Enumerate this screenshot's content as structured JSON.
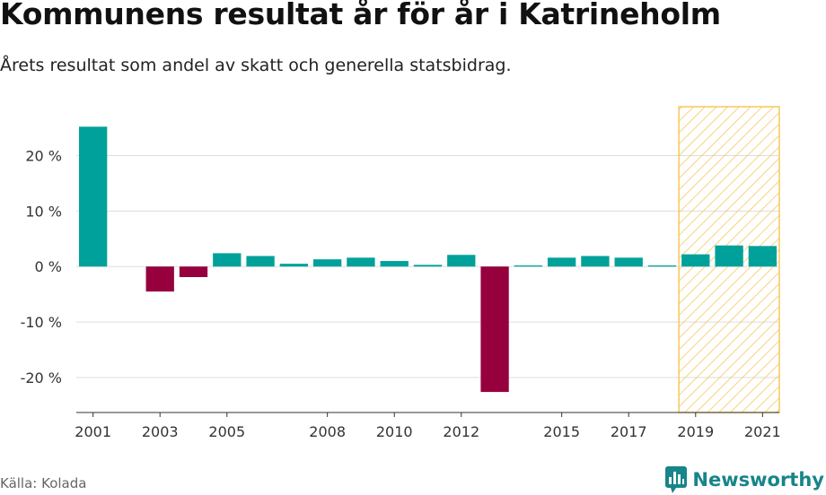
{
  "header": {
    "title": "Kommunens resultat år för år i Katrineholm",
    "subtitle": "Årets resultat som andel av skatt och generella statsbidrag."
  },
  "footer": {
    "source": "Källa: Kolada",
    "brand": "Newsworthy"
  },
  "colors": {
    "positive": "#00a19a",
    "negative": "#96003c",
    "highlight": "#f7c85a",
    "grid": "#dddddd",
    "brand": "#17858a"
  },
  "chart_data": {
    "type": "bar",
    "x": [
      2001,
      2002,
      2003,
      2004,
      2005,
      2006,
      2007,
      2008,
      2009,
      2010,
      2011,
      2012,
      2013,
      2014,
      2015,
      2016,
      2017,
      2018,
      2019,
      2020,
      2021
    ],
    "values": [
      25.2,
      0,
      -4.5,
      -1.9,
      2.4,
      1.9,
      0.5,
      1.3,
      1.6,
      1.0,
      0.3,
      2.1,
      -22.6,
      0.2,
      1.6,
      1.9,
      1.6,
      0.2,
      2.2,
      3.8,
      3.7
    ],
    "x_tick_labels": [
      "2001",
      "2003",
      "2005",
      "2008",
      "2010",
      "2012",
      "2015",
      "2017",
      "2019",
      "2021"
    ],
    "y_ticks": [
      20,
      10,
      0,
      -10,
      -20
    ],
    "y_tick_labels": [
      "20 %",
      "10 %",
      "0 %",
      "-10 %",
      "-20 %"
    ],
    "ylim": [
      -26.3,
      28.8
    ],
    "highlight_range": [
      2019,
      2021
    ],
    "grid": true,
    "legend": "none"
  }
}
